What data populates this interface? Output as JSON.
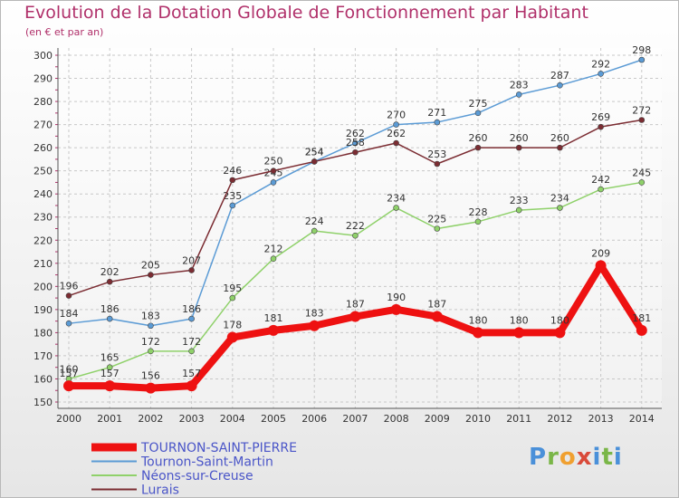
{
  "chart_data": {
    "type": "line",
    "title": "Evolution de la Dotation Globale de Fonctionnement par Habitant",
    "subtitle": "(en € et par an)",
    "xlabel": "",
    "ylabel": "",
    "ylim": [
      150,
      300
    ],
    "yticks": [
      150,
      160,
      170,
      180,
      190,
      200,
      210,
      220,
      230,
      240,
      250,
      260,
      270,
      280,
      290,
      300
    ],
    "categories": [
      "2000",
      "2001",
      "2002",
      "2003",
      "2004",
      "2005",
      "2006",
      "2007",
      "2008",
      "2009",
      "2010",
      "2011",
      "2012",
      "2013",
      "2014"
    ],
    "series": [
      {
        "name": "Tournon-Saint-Martin",
        "color": "#5b9bd5",
        "style": "thin",
        "values": [
          184,
          186,
          183,
          186,
          235,
          245,
          254,
          262,
          270,
          271,
          275,
          283,
          287,
          292,
          298
        ]
      },
      {
        "name": "Néons-sur-Creuse",
        "color": "#8fd16a",
        "style": "thin",
        "values": [
          160,
          165,
          172,
          172,
          195,
          212,
          224,
          222,
          234,
          225,
          228,
          233,
          234,
          242,
          245
        ]
      },
      {
        "name": "Lurais",
        "color": "#7b2c32",
        "style": "thin",
        "values": [
          196,
          202,
          205,
          207,
          246,
          250,
          254,
          258,
          262,
          253,
          260,
          260,
          260,
          269,
          272
        ]
      },
      {
        "name": "TOURNON-SAINT-PIERRE",
        "color": "#ee1111",
        "style": "thick",
        "values": [
          157,
          157,
          156,
          157,
          178,
          181,
          183,
          187,
          190,
          187,
          180,
          180,
          180,
          209,
          181
        ]
      }
    ],
    "legend_order": [
      "TOURNON-SAINT-PIERRE",
      "Tournon-Saint-Martin",
      "Néons-sur-Creuse",
      "Lurais"
    ],
    "legend_position": "bottom-left",
    "grid": true
  },
  "brand": {
    "logo_letters": [
      "P",
      "r",
      "o",
      "x",
      "i",
      "t",
      "i"
    ]
  }
}
